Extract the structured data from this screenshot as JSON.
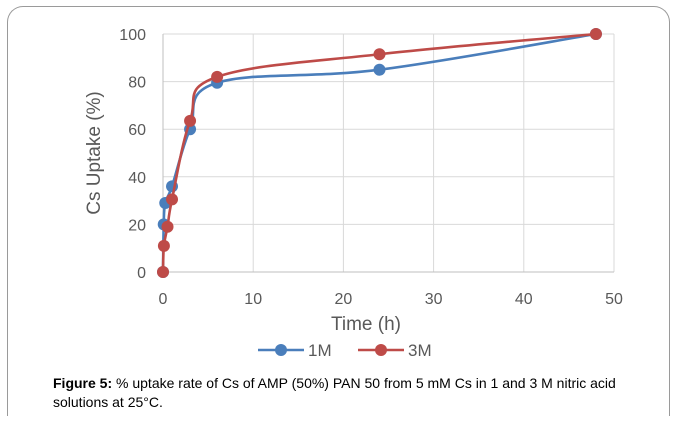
{
  "chart_data": {
    "type": "line",
    "title": "",
    "xlabel": "Time (h)",
    "ylabel": "Cs Uptake (%)",
    "xlim": [
      0,
      50
    ],
    "ylim": [
      0,
      100
    ],
    "xticks": [
      0,
      10,
      20,
      30,
      40,
      50
    ],
    "yticks": [
      0,
      20,
      40,
      60,
      80,
      100
    ],
    "grid": true,
    "legend_position": "bottom",
    "series": [
      {
        "name": "1M",
        "color": "#4a7ebb",
        "points": [
          [
            0,
            0
          ],
          [
            0.08,
            20
          ],
          [
            0.25,
            29
          ],
          [
            1,
            36
          ],
          [
            3,
            60
          ],
          [
            6,
            79.5
          ],
          [
            24,
            85
          ],
          [
            48,
            100
          ]
        ]
      },
      {
        "name": "3M",
        "color": "#be4b48",
        "points": [
          [
            0,
            0
          ],
          [
            0.1,
            11
          ],
          [
            0.5,
            19
          ],
          [
            1,
            30.5
          ],
          [
            3,
            63.5
          ],
          [
            6,
            82
          ],
          [
            24,
            91.5
          ],
          [
            48,
            100
          ]
        ]
      }
    ]
  },
  "caption": {
    "label": "Figure 5:",
    "text": " % uptake rate of Cs of AMP (50%) PAN 50 from 5 mM Cs in 1 and 3 M nitric acid solutions at 25°C."
  }
}
